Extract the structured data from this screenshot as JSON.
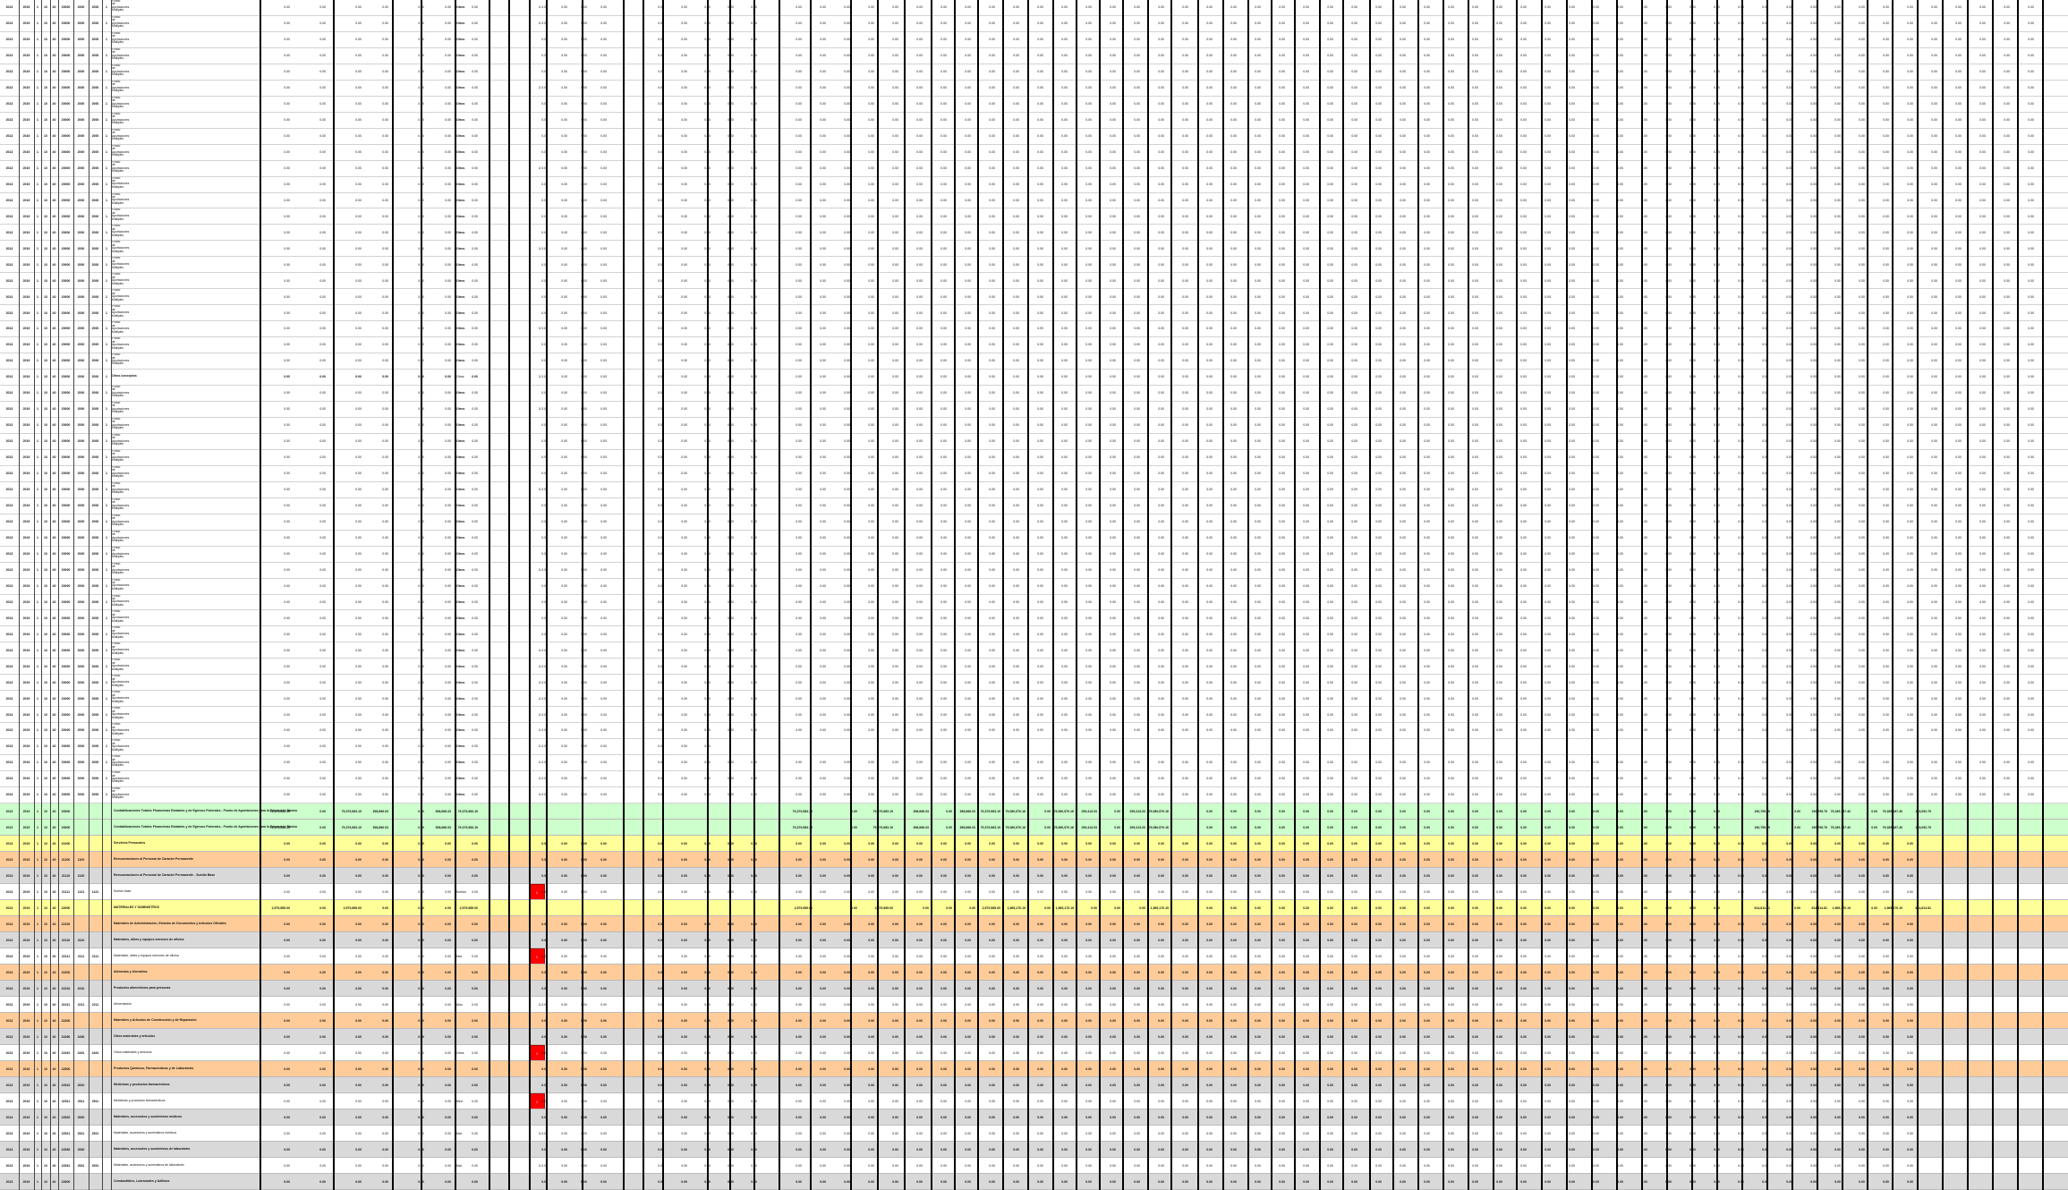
{
  "sheet": {
    "title": "",
    "colors": {
      "row_white": "#ffffff",
      "row_green": "#ccffcc",
      "row_yellow": "#ffff99",
      "row_orange": "#ffcc99",
      "row_gray": "#d9d9d9",
      "flag_red": "#ff0000",
      "grid_line": "#000000"
    },
    "code_values": [
      "2013",
      "2019",
      "1",
      "10",
      "40",
      "20000",
      "2000",
      "21",
      "1"
    ],
    "zero_value": "0.00",
    "flag_label": "1",
    "status_flag_col": "Ds",
    "detail_rows": {
      "prefix_codes": [
        "2013",
        "2019",
        "1",
        "10",
        "40",
        "20000",
        "2000",
        "2000",
        "1"
      ],
      "desc_lines": [
        "Fondo",
        "de",
        "Aportaciones",
        "Múltiples"
      ],
      "tag": "Otros",
      "mark": "1"
    },
    "section_header_row": {
      "description": "Otros conceptos",
      "tag": "Otros"
    },
    "summary_rows": [
      {
        "band": "green",
        "codes": [
          "2013",
          "2019",
          "1",
          "10",
          "40",
          "20000"
        ],
        "description": "Contabilizaciones Totales Financieras Estatales y de Egresos Federales - Fondo de Aportaciones para la Educación Básica",
        "values": [
          "79,379,983.19",
          "0.00",
          "79,379,983.19",
          "398,666.03",
          "0.00",
          "398,666.03",
          "79,379,983.19"
        ],
        "right_values": [
          "79,379,983.19",
          "0.00",
          "79,379,983.19",
          "398,666.03",
          "0.00",
          "398,666.03",
          "79,379,983.19",
          "79,080,570.16",
          "0.00",
          "79,080,570.16",
          "299,413.03",
          "0.00",
          "299,413.03",
          "79,080,570.16"
        ],
        "far_values": [
          "190,795.79",
          "0.00",
          "190,795.79",
          "79,189,187.40",
          "0.00",
          "79,189,187.40",
          "215,052.79"
        ]
      },
      {
        "band": "green",
        "codes": [
          "2013",
          "2019",
          "1",
          "10",
          "40",
          "20000"
        ],
        "description": "Contabilizaciones Totales Financieras Estatales y de Egresos Federales - Fondo de Aportaciones para la Educación Básica",
        "values": [
          "79,379,983.19",
          "0.00",
          "79,379,983.19",
          "398,666.03",
          "0.00",
          "398,666.03",
          "79,379,983.19"
        ],
        "right_values": [
          "79,379,983.19",
          "0.00",
          "79,379,983.19",
          "398,666.03",
          "0.00",
          "398,666.03",
          "79,379,983.19",
          "79,080,570.16",
          "0.00",
          "79,080,570.16",
          "299,413.03",
          "0.00",
          "299,413.03",
          "79,080,570.16"
        ],
        "far_values": [
          "190,795.79",
          "0.00",
          "190,795.79",
          "79,189,187.40",
          "0.00",
          "79,189,187.40",
          "215,052.79"
        ]
      },
      {
        "band": "yellow",
        "codes": [
          "2013",
          "2019",
          "1",
          "10",
          "40",
          "21000"
        ],
        "description": "Servicios Personales",
        "values": [
          "0.00",
          "0.00",
          "0.00",
          "0.00",
          "0.00",
          "0.00",
          "0.00"
        ]
      },
      {
        "band": "orange",
        "codes": [
          "2013",
          "2019",
          "1",
          "10",
          "40",
          "21100",
          "1100"
        ],
        "description": "Remuneraciones al Personal de Carácter Permanente",
        "values": [
          "0.00",
          "0.00",
          "0.00",
          "0.00",
          "0.00",
          "0.00",
          "0.00"
        ]
      },
      {
        "band": "gray",
        "codes": [
          "2013",
          "2019",
          "1",
          "10",
          "40",
          "21110",
          "1130"
        ],
        "description": "Remuneraciones al Personal de Carácter Permanente - Sueldo Base",
        "values": [
          "0.00",
          "0.00",
          "0.00",
          "0.00",
          "0.00",
          "0.00",
          "0.00"
        ]
      },
      {
        "band": "white",
        "codes": [
          "2013",
          "2019",
          "1",
          "10",
          "40",
          "21111",
          "1131",
          "1131"
        ],
        "description": "Sueldo base",
        "tag": "Sueldo",
        "flag": true,
        "values": [
          "0.00",
          "0.00",
          "0.00",
          "0.00",
          "0.00",
          "0.00",
          "0.00"
        ]
      },
      {
        "band": "yellow",
        "codes": [
          "2013",
          "2019",
          "1",
          "10",
          "40",
          "22000"
        ],
        "description": "MATERIALES Y SUMINISTROS",
        "values": [
          "2,579,985.00",
          "0.00",
          "2,579,985.00",
          "0.00",
          "0.00",
          "0.00",
          "2,579,985.00"
        ],
        "right_values": [
          "2,579,985.00",
          "0.00",
          "2,579,985.00",
          "0.00",
          "0.00",
          "0.00",
          "2,579,985.00",
          "1,965,170.19",
          "0.00",
          "1,965,170.19",
          "0.00",
          "0.00",
          "0.00",
          "1,965,170.19"
        ],
        "far_values": [
          "614,814.81",
          "0.00",
          "614,814.81",
          "1,965,170.19",
          "0.00",
          "1,965,170.19",
          "614,814.81"
        ]
      },
      {
        "band": "orange",
        "codes": [
          "2013",
          "2019",
          "1",
          "10",
          "40",
          "22100"
        ],
        "description": "Materiales de Administración, Emisión de Documentos y Artículos Oficiales",
        "values": [
          "0.00",
          "0.00",
          "0.00",
          "0.00",
          "0.00",
          "0.00",
          "0.00"
        ]
      },
      {
        "band": "gray",
        "codes": [
          "2013",
          "2019",
          "1",
          "10",
          "40",
          "22110",
          "2110"
        ],
        "description": "Materiales, útiles y equipos menores de oficina",
        "values": [
          "0.00",
          "0.00",
          "0.00",
          "0.00",
          "0.00",
          "0.00",
          "0.00"
        ]
      },
      {
        "band": "white",
        "codes": [
          "2013",
          "2019",
          "1",
          "10",
          "40",
          "22111",
          "2111",
          "2111"
        ],
        "description": "Materiales, útiles y equipos menores de oficina",
        "tag": "Mat",
        "flag": true,
        "values": [
          "0.00",
          "0.00",
          "0.00",
          "0.00",
          "0.00",
          "0.00",
          "0.00"
        ]
      },
      {
        "band": "orange",
        "codes": [
          "2013",
          "2019",
          "1",
          "10",
          "40",
          "22200"
        ],
        "description": "Alimentos y Utensilios",
        "values": [
          "0.00",
          "0.00",
          "0.00",
          "0.00",
          "0.00",
          "0.00",
          "0.00"
        ]
      },
      {
        "band": "gray",
        "codes": [
          "2013",
          "2019",
          "1",
          "10",
          "40",
          "22210",
          "2210"
        ],
        "description": "Productos alimenticios para personas",
        "values": [
          "0.00",
          "0.00",
          "0.00",
          "0.00",
          "0.00",
          "0.00",
          "0.00"
        ]
      },
      {
        "band": "white",
        "codes": [
          "2013",
          "2019",
          "1",
          "10",
          "40",
          "22211",
          "2211",
          "2211"
        ],
        "description": "Alimentación",
        "tag": "Alim",
        "values": [
          "0.00",
          "0.00",
          "0.00",
          "0.00",
          "0.00",
          "0.00",
          "0.00"
        ]
      },
      {
        "band": "orange",
        "codes": [
          "2013",
          "2019",
          "1",
          "10",
          "40",
          "22400"
        ],
        "description": "Materiales y Artículos de Construcción y de Reparación",
        "values": [
          "0.00",
          "0.00",
          "0.00",
          "0.00",
          "0.00",
          "0.00",
          "0.00"
        ]
      },
      {
        "band": "gray",
        "codes": [
          "2013",
          "2019",
          "1",
          "10",
          "40",
          "22490",
          "2490"
        ],
        "description": "Otros materiales y artículos",
        "values": [
          "0.00",
          "0.00",
          "0.00",
          "0.00",
          "0.00",
          "0.00",
          "0.00"
        ]
      },
      {
        "band": "white",
        "codes": [
          "2013",
          "2019",
          "1",
          "10",
          "40",
          "22491",
          "2491",
          "2491"
        ],
        "description": "Otros materiales y artículos",
        "tag": "Otros",
        "flag": true,
        "values": [
          "0.00",
          "0.00",
          "0.00",
          "0.00",
          "0.00",
          "0.00",
          "0.00"
        ]
      },
      {
        "band": "orange",
        "codes": [
          "2013",
          "2019",
          "1",
          "10",
          "40",
          "22500"
        ],
        "description": "Productos Químicos, Farmacéuticos y de Laboratorio",
        "values": [
          "0.00",
          "0.00",
          "0.00",
          "0.00",
          "0.00",
          "0.00",
          "0.00"
        ]
      },
      {
        "band": "gray",
        "codes": [
          "2013",
          "2019",
          "1",
          "10",
          "40",
          "22510",
          "2510"
        ],
        "description": "Medicinas y productos farmacéuticos",
        "values": [
          "0.00",
          "0.00",
          "0.00",
          "0.00",
          "0.00",
          "0.00",
          "0.00"
        ]
      },
      {
        "band": "white",
        "codes": [
          "2013",
          "2019",
          "1",
          "10",
          "40",
          "22511",
          "2511",
          "2511"
        ],
        "description": "Medicinas y productos farmacéuticos",
        "tag": "Med",
        "flag": true,
        "values": [
          "0.00",
          "0.00",
          "0.00",
          "0.00",
          "0.00",
          "0.00",
          "0.00"
        ]
      },
      {
        "band": "gray",
        "codes": [
          "2013",
          "2019",
          "1",
          "10",
          "40",
          "22520",
          "2520"
        ],
        "description": "Materiales, accesorios y suministros médicos",
        "values": [
          "0.00",
          "0.00",
          "0.00",
          "0.00",
          "0.00",
          "0.00",
          "0.00"
        ]
      },
      {
        "band": "white",
        "codes": [
          "2013",
          "2019",
          "1",
          "10",
          "40",
          "22521",
          "2521",
          "2521"
        ],
        "description": "Materiales, accesorios y suministros médicos",
        "tag": "Mat",
        "values": [
          "0.00",
          "0.00",
          "0.00",
          "0.00",
          "0.00",
          "0.00",
          "0.00"
        ]
      },
      {
        "band": "gray",
        "codes": [
          "2013",
          "2019",
          "1",
          "10",
          "40",
          "22530",
          "2530"
        ],
        "description": "Materiales, accesorios y suministros de laboratorio",
        "values": [
          "0.00",
          "0.00",
          "0.00",
          "0.00",
          "0.00",
          "0.00",
          "0.00"
        ]
      },
      {
        "band": "white",
        "codes": [
          "2013",
          "2019",
          "1",
          "10",
          "40",
          "22531",
          "2531",
          "2531"
        ],
        "description": "Materiales, accesorios y suministros de laboratorio",
        "tag": "Mat",
        "values": [
          "0.00",
          "0.00",
          "0.00",
          "0.00",
          "0.00",
          "0.00",
          "0.00"
        ]
      },
      {
        "band": "gray",
        "codes": [
          "2013",
          "2019",
          "1",
          "10",
          "40",
          "22600"
        ],
        "description": "Combustibles, Lubricantes y Aditivos",
        "values": [
          "0.00",
          "0.00",
          "0.00",
          "0.00",
          "0.00",
          "0.00",
          "0.00"
        ]
      }
    ]
  }
}
